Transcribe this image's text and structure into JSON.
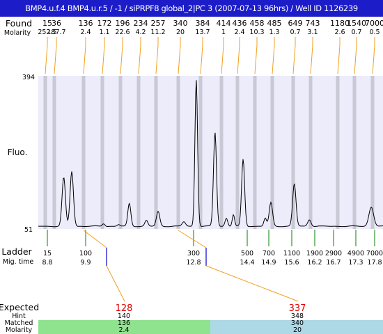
{
  "header": {
    "title": "BMP4.u.f.4  BMP4.u.r.5 / -1 / siPRPF8 global_2|PC 3 (2007-07-13 96hrs) / Well ID 1126239"
  },
  "labels": {
    "found": "Found",
    "molarity": "Molarity",
    "fluo": "Fluo.",
    "ladder": "Ladder",
    "mig_time": "Mig. time",
    "expected": "Expected",
    "hint": "Hint",
    "matched": "Matched",
    "molarity_row": "Molarity"
  },
  "colors": {
    "title_bg": "#1c1cc8",
    "plot_bg": "#ececfb",
    "band": "#c9c9d5",
    "trace": "#000000",
    "found_link": "#f0a020",
    "ladder_tick": "#008000",
    "expected_text": "#e00000",
    "expected_marker": "#0000cc",
    "matched_left": "#8fe38f",
    "matched_right": "#add8e6"
  },
  "chart_data": {
    "type": "line",
    "title": "BMP4.u.f.4  BMP4.u.r.5 / -1 / siPRPF8 global_2|PC 3 (2007-07-13 96hrs) / Well ID 1126239",
    "xlabel": "Mig. time",
    "ylabel": "Fluo.",
    "ylim": [
      51,
      394
    ],
    "ytick_labels": [
      "394",
      "51"
    ],
    "found": {
      "sizes": [
        "15",
        "36",
        "136",
        "172",
        "196",
        "234",
        "257",
        "340",
        "384",
        "414",
        "436",
        "458",
        "485",
        "649",
        "743",
        "1180",
        "1540",
        "7000"
      ],
      "molarity": [
        "252.5",
        "187.7",
        "2.4",
        "1.1",
        "22.6",
        "4.2",
        "11.2",
        "20",
        "13.7",
        "1",
        "2.4",
        "10.3",
        "1.3",
        "0.7",
        "3.1",
        "2.6",
        "0.7",
        "0.5"
      ]
    },
    "ladder": {
      "sizes": [
        "15",
        "100",
        "300",
        "500",
        "700",
        "1100",
        "1900",
        "2900",
        "4900",
        "7000"
      ],
      "mig_times": [
        "8.8",
        "9.9",
        "12.8",
        "14.4",
        "14.9",
        "15.6",
        "16.2",
        "16.7",
        "17.3",
        "17.8"
      ]
    },
    "expected": [
      {
        "size": "128",
        "hint": "140",
        "matched": "136",
        "molarity": "2.4",
        "color": "#8fe38f"
      },
      {
        "size": "337",
        "hint": "348",
        "matched": "340",
        "molarity": "20",
        "color": "#add8e6"
      }
    ],
    "trace": {
      "x_range": [
        8.0,
        18.3
      ],
      "baseline": 57,
      "peaks": [
        {
          "x": 8.76,
          "y": 166,
          "w": 0.05
        },
        {
          "x": 9.0,
          "y": 180,
          "w": 0.05
        },
        {
          "x": 9.95,
          "y": 63,
          "w": 0.04
        },
        {
          "x": 10.4,
          "y": 61,
          "w": 0.04
        },
        {
          "x": 10.72,
          "y": 108,
          "w": 0.045
        },
        {
          "x": 11.23,
          "y": 70,
          "w": 0.045
        },
        {
          "x": 11.58,
          "y": 90,
          "w": 0.05
        },
        {
          "x": 12.35,
          "y": 67,
          "w": 0.05
        },
        {
          "x": 12.72,
          "y": 386,
          "w": 0.04
        },
        {
          "x": 13.28,
          "y": 268,
          "w": 0.045
        },
        {
          "x": 13.62,
          "y": 75,
          "w": 0.04
        },
        {
          "x": 13.83,
          "y": 83,
          "w": 0.035
        },
        {
          "x": 14.12,
          "y": 207,
          "w": 0.045
        },
        {
          "x": 14.78,
          "y": 75,
          "w": 0.04
        },
        {
          "x": 14.95,
          "y": 110,
          "w": 0.05
        },
        {
          "x": 15.65,
          "y": 152,
          "w": 0.05
        },
        {
          "x": 16.1,
          "y": 72,
          "w": 0.05
        },
        {
          "x": 17.95,
          "y": 100,
          "w": 0.07
        }
      ]
    }
  }
}
